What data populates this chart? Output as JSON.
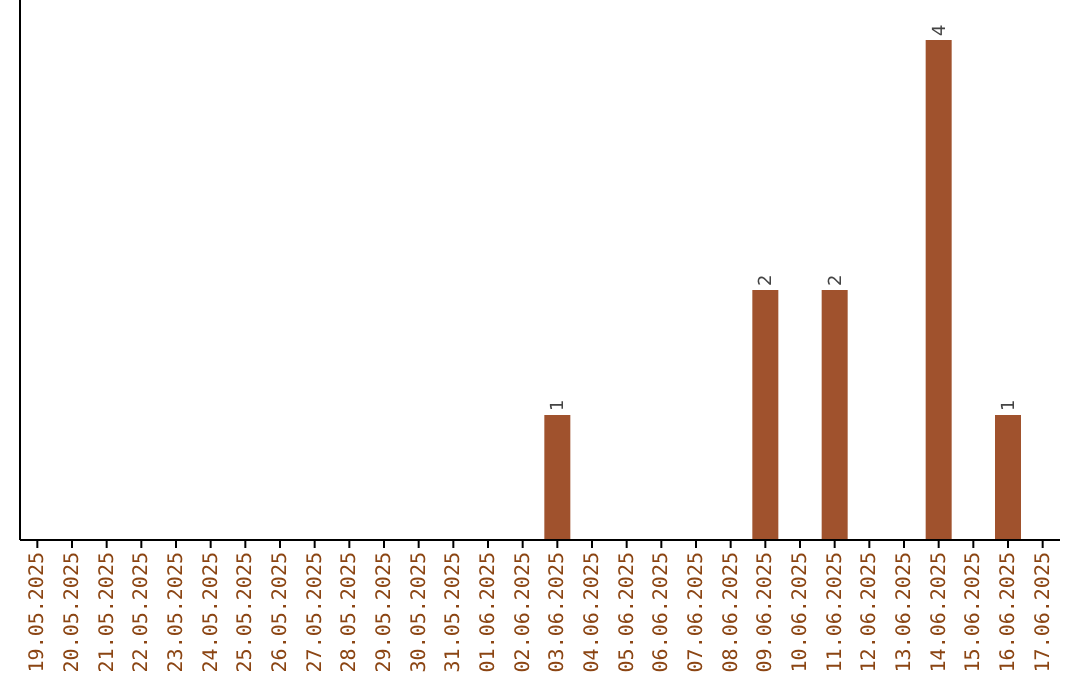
{
  "chart_data": {
    "type": "bar",
    "categories": [
      "19.05.2025",
      "20.05.2025",
      "21.05.2025",
      "22.05.2025",
      "23.05.2025",
      "24.05.2025",
      "25.05.2025",
      "26.05.2025",
      "27.05.2025",
      "28.05.2025",
      "29.05.2025",
      "30.05.2025",
      "31.05.2025",
      "01.06.2025",
      "02.06.2025",
      "03.06.2025",
      "04.06.2025",
      "05.06.2025",
      "06.06.2025",
      "07.06.2025",
      "08.06.2025",
      "09.06.2025",
      "10.06.2025",
      "11.06.2025",
      "12.06.2025",
      "13.06.2025",
      "14.06.2025",
      "15.06.2025",
      "16.06.2025",
      "17.06.2025"
    ],
    "values": [
      null,
      null,
      null,
      null,
      null,
      null,
      null,
      null,
      null,
      null,
      null,
      null,
      null,
      null,
      null,
      1,
      null,
      null,
      null,
      null,
      null,
      2,
      null,
      2,
      null,
      null,
      4,
      null,
      1,
      null
    ],
    "color": "#a0522d",
    "data_labels": true
  }
}
